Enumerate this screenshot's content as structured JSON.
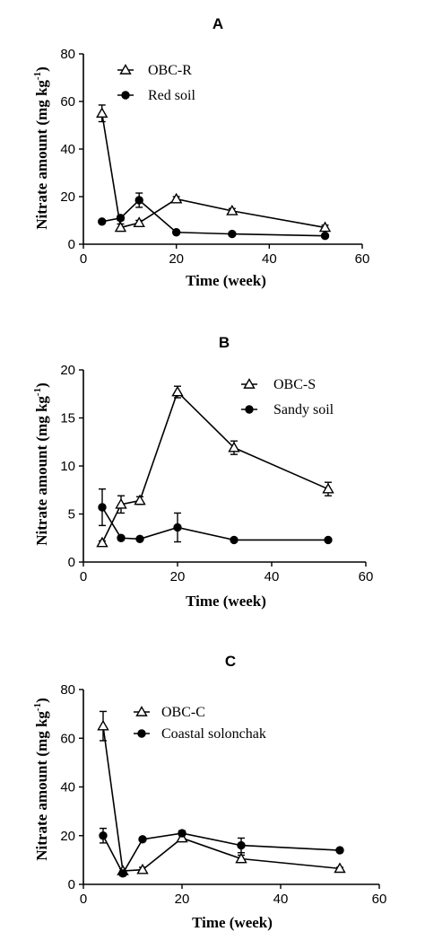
{
  "chart_data": [
    {
      "type": "line",
      "panel": "A",
      "xlabel": "Time (week)",
      "ylabel": "Nitrate amount (mg kg",
      "ylabel_sup": "-1",
      "ylabel_close": ")",
      "xlim": [
        0,
        60
      ],
      "ylim": [
        0,
        80
      ],
      "xticks": [
        0,
        20,
        40,
        60
      ],
      "yticks": [
        0,
        20,
        40,
        60,
        80
      ],
      "legend_position": "top-right",
      "series": [
        {
          "name": "OBC-R",
          "marker": "triangle-open",
          "x": [
            4,
            8,
            12,
            20,
            32,
            52
          ],
          "y": [
            55,
            7,
            9,
            19,
            14,
            7
          ],
          "err": [
            3.5,
            1.5,
            1,
            1,
            1,
            1
          ]
        },
        {
          "name": "Red soil",
          "marker": "circle-filled",
          "x": [
            4,
            8,
            12,
            20,
            32,
            52
          ],
          "y": [
            9.5,
            11,
            18.5,
            5,
            4.3,
            3.5
          ],
          "err": [
            0.5,
            1,
            3,
            0.5,
            0.5,
            0.5
          ]
        }
      ]
    },
    {
      "type": "line",
      "panel": "B",
      "xlabel": "Time (week)",
      "ylabel": "Nitrate amount (mg kg",
      "ylabel_sup": "-1",
      "ylabel_close": ")",
      "xlim": [
        0,
        60
      ],
      "ylim": [
        0,
        20
      ],
      "xticks": [
        0,
        20,
        40,
        60
      ],
      "yticks": [
        0,
        5,
        10,
        15,
        20
      ],
      "legend_position": "top-right",
      "series": [
        {
          "name": "OBC-S",
          "marker": "triangle-open",
          "x": [
            4,
            8,
            12,
            20,
            32,
            52
          ],
          "y": [
            2,
            6,
            6.4,
            17.7,
            11.9,
            7.6
          ],
          "err": [
            0.2,
            0.9,
            0.4,
            0.6,
            0.7,
            0.7
          ]
        },
        {
          "name": "Sandy soil",
          "marker": "circle-filled",
          "x": [
            4,
            8,
            12,
            20,
            32,
            52
          ],
          "y": [
            5.7,
            2.5,
            2.4,
            3.6,
            2.3,
            2.3
          ],
          "err": [
            1.9,
            0.2,
            0.1,
            1.5,
            0.1,
            0.1
          ]
        }
      ]
    },
    {
      "type": "line",
      "panel": "C",
      "xlabel": "Time (week)",
      "ylabel": "Nitrate amount (mg kg",
      "ylabel_sup": "-1",
      "ylabel_close": ")",
      "xlim": [
        0,
        60
      ],
      "ylim": [
        0,
        80
      ],
      "xticks": [
        0,
        20,
        40,
        60
      ],
      "yticks": [
        0,
        20,
        40,
        60,
        80
      ],
      "legend_position": "top-right",
      "series": [
        {
          "name": "OBC-C",
          "marker": "triangle-open",
          "x": [
            4,
            8,
            12,
            20,
            32,
            52
          ],
          "y": [
            65,
            5.5,
            6,
            19,
            10.5,
            6.5
          ],
          "err": [
            6,
            1,
            1,
            1.5,
            1.5,
            0.5
          ]
        },
        {
          "name": "Coastal solonchak",
          "marker": "circle-filled",
          "x": [
            4,
            8,
            12,
            20,
            32,
            52
          ],
          "y": [
            20,
            4.5,
            18.5,
            21,
            16,
            14
          ],
          "err": [
            3,
            1,
            0.5,
            1,
            3,
            0.5
          ]
        }
      ]
    }
  ]
}
